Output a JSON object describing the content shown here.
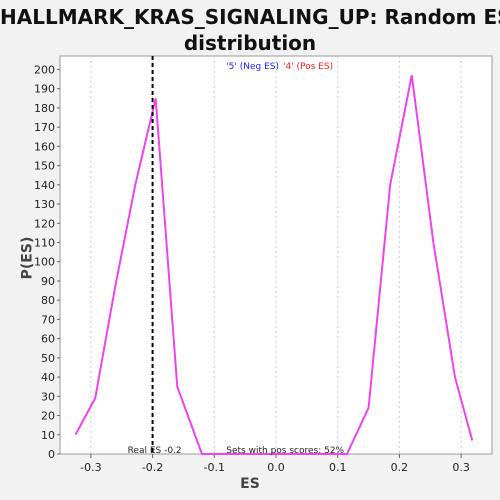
{
  "title_line1": "HALLMARK_KRAS_SIGNALING_UP: Random ES",
  "title_line2": "distribution",
  "chart_data": {
    "type": "line",
    "title": "HALLMARK_KRAS_SIGNALING_UP: Random ES distribution",
    "xlabel": "ES",
    "ylabel": "P(ES)",
    "xlim": [
      -0.35,
      0.35
    ],
    "ylim": [
      0,
      207
    ],
    "xticks": [
      -0.3,
      -0.2,
      -0.1,
      0.0,
      0.1,
      0.2,
      0.3
    ],
    "xtick_labels": [
      "-0.3",
      "-0.2",
      "-0.1",
      "0.0",
      "0.1",
      "0.2",
      "0.3"
    ],
    "yticks": [
      0,
      10,
      20,
      30,
      40,
      50,
      60,
      70,
      80,
      90,
      100,
      110,
      120,
      130,
      140,
      150,
      160,
      170,
      180,
      190,
      200
    ],
    "series": [
      {
        "color": "#ee44ee",
        "x": [
          -0.325,
          -0.293,
          -0.26,
          -0.228,
          -0.195,
          -0.16,
          -0.12,
          -0.09,
          0.115,
          0.15,
          0.185,
          0.22,
          0.255,
          0.29,
          0.318
        ],
        "y": [
          10,
          29,
          88,
          140,
          185,
          35,
          0,
          0,
          0,
          24,
          140,
          197,
          110,
          40,
          7
        ]
      }
    ],
    "legend": {
      "neg_label": "'5' (Neg ES)",
      "pos_label": "'4' (Pos ES)",
      "neg_color": "#1a1aff",
      "pos_color": "#ff1a1a",
      "placement": "top-center"
    },
    "real_es": -0.2,
    "real_es_label": "Real ES -0.2",
    "pos_scores_label": "Sets with pos scores: 52%"
  }
}
